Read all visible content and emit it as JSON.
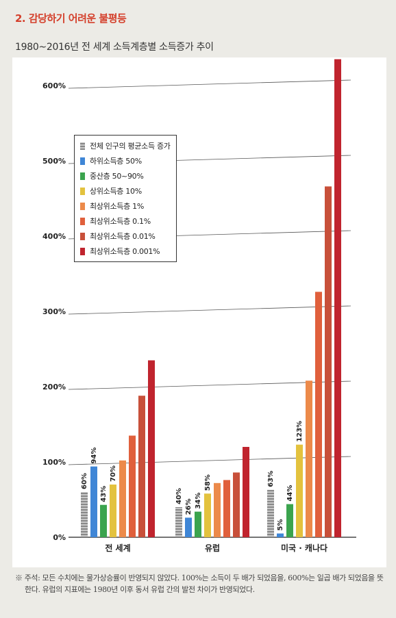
{
  "section_title": "2. 감당하기 어려운 불평등",
  "footnote": "※ 주석: 모든 수치에는 물가상승률이 반영되지 않았다. 100%는 소득이 두 배가 되었음을, 600%는 일곱 배가 되었음을 뜻한다. 유럽의 지표에는 1980년 이후 동서 유럽 간의 발전 차이가 반영되었다.",
  "colors": {
    "accent": "#d4402c"
  },
  "chart_data": {
    "type": "bar",
    "title": "1980~2016년 전 세계 소득계층별 소득증가 추이",
    "xlabel": "",
    "ylabel": "",
    "ylim": [
      0,
      600
    ],
    "yticks": [
      0,
      100,
      200,
      300,
      400,
      500,
      600
    ],
    "ytick_labels": [
      "0%",
      "100%",
      "200%",
      "300%",
      "400%",
      "500%",
      "600%"
    ],
    "categories": [
      "전 세계",
      "유럽",
      "미국 · 캐나다"
    ],
    "legend_position": "upper-left",
    "grid": "horizontal",
    "series": [
      {
        "name": "전체 인구의 평균소득 증가",
        "color": "#9a9a9a",
        "hatched": true,
        "values": [
          60,
          40,
          63
        ],
        "labels": [
          "60%",
          "40%",
          "63%"
        ]
      },
      {
        "name": "하위소득층 50%",
        "color": "#3f86d6",
        "values": [
          94,
          26,
          5
        ],
        "labels": [
          "94%",
          "26%",
          "5%"
        ]
      },
      {
        "name": "중산층 50~90%",
        "color": "#3ba44e",
        "values": [
          43,
          34,
          44
        ],
        "labels": [
          "43%",
          "34%",
          "44%"
        ]
      },
      {
        "name": "상위소득층 10%",
        "color": "#e3c23e",
        "values": [
          70,
          58,
          123
        ],
        "labels": [
          "70%",
          "58%",
          "123%"
        ]
      },
      {
        "name": "최상위소득층 1%",
        "color": "#ec8a4a",
        "values": [
          102,
          72,
          208
        ],
        "labels": []
      },
      {
        "name": "최상위소득층 0.1%",
        "color": "#e0603c",
        "values": [
          135,
          76,
          326
        ],
        "labels": []
      },
      {
        "name": "최상위소득층 0.01%",
        "color": "#c8503a",
        "values": [
          188,
          86,
          466
        ],
        "labels": []
      },
      {
        "name": "최상위소득층 0.001%",
        "color": "#c0242e",
        "values": [
          235,
          120,
          635
        ],
        "labels": []
      }
    ]
  }
}
